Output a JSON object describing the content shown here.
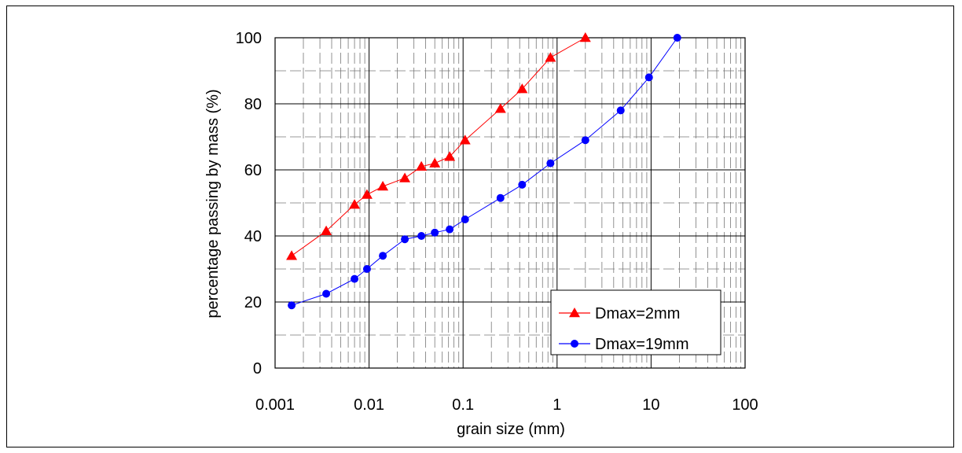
{
  "chart_data": {
    "type": "scatter",
    "xscale": "log",
    "xlabel": "grain size (mm)",
    "ylabel": "percentage passing by mass (%)",
    "xlim": [
      0.001,
      100
    ],
    "ylim": [
      0,
      100
    ],
    "xticks": [
      "0.001",
      "0.01",
      "0.1",
      "1",
      "10",
      "100"
    ],
    "yticks": [
      "0",
      "20",
      "40",
      "60",
      "80",
      "100"
    ],
    "grid": true,
    "legend_position": "bottom-right",
    "series": [
      {
        "name": "Dmax=2mm",
        "color": "#ff0000",
        "marker": "triangle",
        "x": [
          0.0015,
          0.0035,
          0.007,
          0.0095,
          0.014,
          0.024,
          0.036,
          0.05,
          0.072,
          0.105,
          0.25,
          0.425,
          0.85,
          2
        ],
        "y": [
          34,
          41.5,
          49.5,
          52.5,
          55,
          57.5,
          61,
          62,
          64,
          69,
          78.5,
          84.5,
          94,
          100
        ]
      },
      {
        "name": "Dmax=19mm",
        "color": "#0000ff",
        "marker": "circle",
        "x": [
          0.0015,
          0.0035,
          0.007,
          0.0095,
          0.014,
          0.024,
          0.036,
          0.05,
          0.072,
          0.105,
          0.25,
          0.425,
          0.85,
          2,
          4.75,
          9.5,
          19
        ],
        "y": [
          19,
          22.5,
          27,
          30,
          34,
          39,
          40,
          41,
          42,
          45,
          51.5,
          55.5,
          62,
          69,
          78,
          88,
          100
        ]
      }
    ]
  }
}
